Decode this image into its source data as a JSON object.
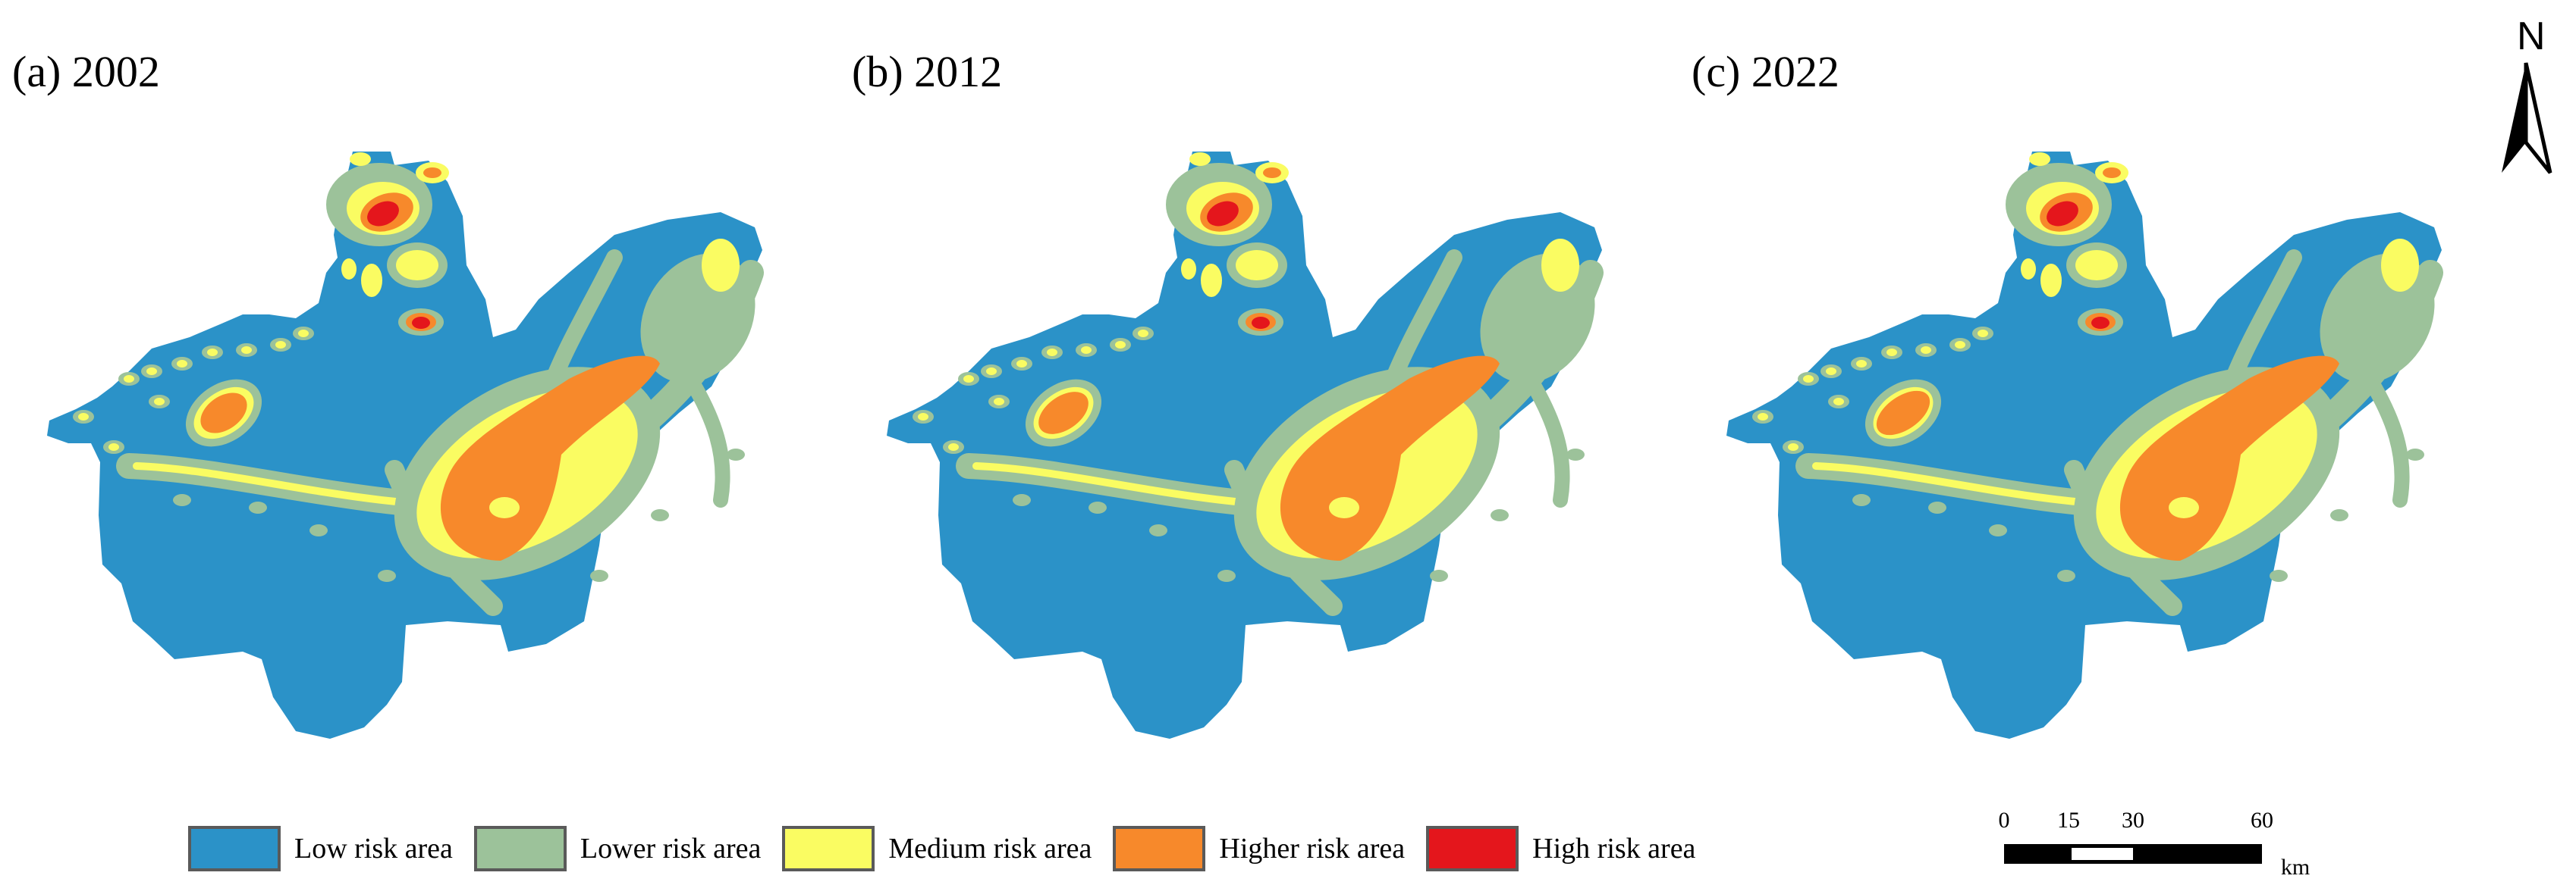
{
  "panels": [
    {
      "id": "a",
      "title": "(a) 2002"
    },
    {
      "id": "b",
      "title": "(b) 2012"
    },
    {
      "id": "c",
      "title": "(c) 2022"
    }
  ],
  "north_arrow": {
    "label": "N"
  },
  "legend": [
    {
      "label": "Low risk area",
      "color": "#2b92c8"
    },
    {
      "label": "Lower risk area",
      "color": "#9cc29a"
    },
    {
      "label": "Medium risk area",
      "color": "#fafc62"
    },
    {
      "label": "Higher risk area",
      "color": "#f7892b"
    },
    {
      "label": "High risk area",
      "color": "#e4161c"
    }
  ],
  "scalebar": {
    "ticks": [
      "0",
      "15",
      "30",
      "60"
    ],
    "unit": "km"
  }
}
